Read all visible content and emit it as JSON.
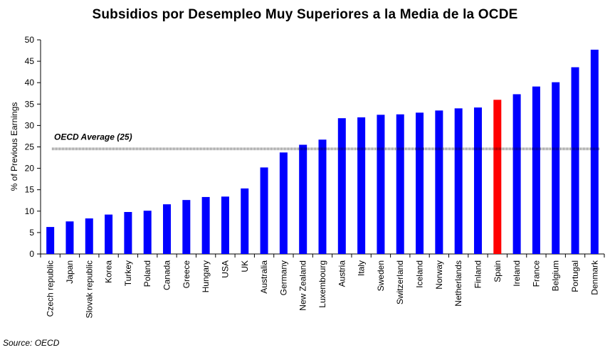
{
  "chart_data": {
    "type": "bar",
    "title": "Subsidios por Desempleo Muy Superiores a la Media de la OCDE",
    "ylabel": "% of Previous Earnings",
    "xlabel": "",
    "ylim": [
      0,
      50
    ],
    "yticks": [
      0,
      5,
      10,
      15,
      20,
      25,
      30,
      35,
      40,
      45,
      50
    ],
    "categories": [
      "Czech republic",
      "Japan",
      "Slovak republic",
      "Korea",
      "Turkey",
      "Poland",
      "Canada",
      "Greece",
      "Hungary",
      "USA",
      "UK",
      "Australia",
      "Germany",
      "New Zealand",
      "Luxembourg",
      "Austria",
      "Italy",
      "Sweden",
      "Switzerland",
      "Iceland",
      "Norway",
      "Netherlands",
      "Finland",
      "Spain",
      "Ireland",
      "France",
      "Belgium",
      "Portugal",
      "Denmark"
    ],
    "values": [
      6.3,
      7.6,
      8.3,
      9.2,
      9.8,
      10.1,
      11.6,
      12.6,
      13.3,
      13.4,
      15.3,
      20.2,
      23.7,
      25.5,
      26.7,
      31.7,
      31.9,
      32.5,
      32.6,
      33.0,
      33.5,
      34.0,
      34.2,
      36.0,
      37.3,
      39.1,
      40.1,
      43.6,
      47.7
    ],
    "bar_color": "#0000FF",
    "highlight": {
      "category": "Spain",
      "color": "#FF0000"
    },
    "reference_line": {
      "label": "OECD Average (25)",
      "value": 24.7,
      "style": "dotted"
    },
    "grid": false,
    "legend": "none"
  },
  "source": "Source: OECD"
}
